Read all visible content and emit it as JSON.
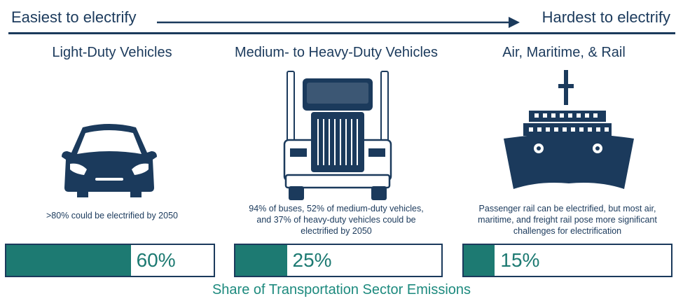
{
  "header": {
    "left_label": "Easiest to electrify",
    "right_label": "Hardest to electrify",
    "arrow_icon": "arrow-right-icon"
  },
  "columns": [
    {
      "title": "Light-Duty Vehicles",
      "icon": "car-icon",
      "caption": ">80% could be electrified by 2050",
      "share_pct": 60,
      "share_label": "60%"
    },
    {
      "title": "Medium- to Heavy-Duty Vehicles",
      "icon": "truck-icon",
      "caption": "94% of buses, 52% of medium-duty vehicles, and 37% of heavy-duty vehicles could be electrified by 2050",
      "share_pct": 25,
      "share_label": "25%"
    },
    {
      "title": "Air, Maritime, & Rail",
      "icon": "ship-icon",
      "caption": "Passenger rail can be electrified, but most air, maritime, and freight rail pose more significant challenges for electrification",
      "share_pct": 15,
      "share_label": "15%"
    }
  ],
  "footer": "Share of Transportation Sector Emissions",
  "colors": {
    "navy": "#1b3a5c",
    "teal": "#1d7a72"
  }
}
